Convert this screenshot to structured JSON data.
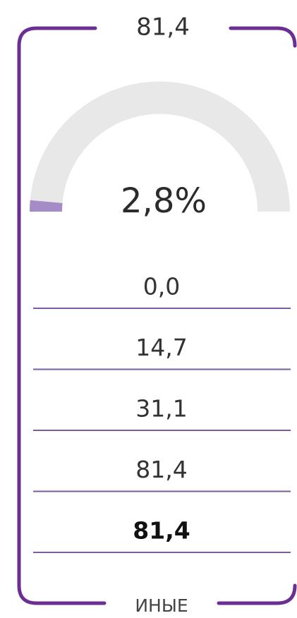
{
  "header": "81,4",
  "chart_data": {
    "type": "gauge",
    "value": 2.8,
    "value_label": "2,8%",
    "ylim": [
      0,
      100
    ],
    "color": "#a58cc6"
  },
  "rows": [
    "0,0",
    "14,7",
    "31,1",
    "81,4",
    "81,4"
  ],
  "footer": "ИНЫЕ"
}
